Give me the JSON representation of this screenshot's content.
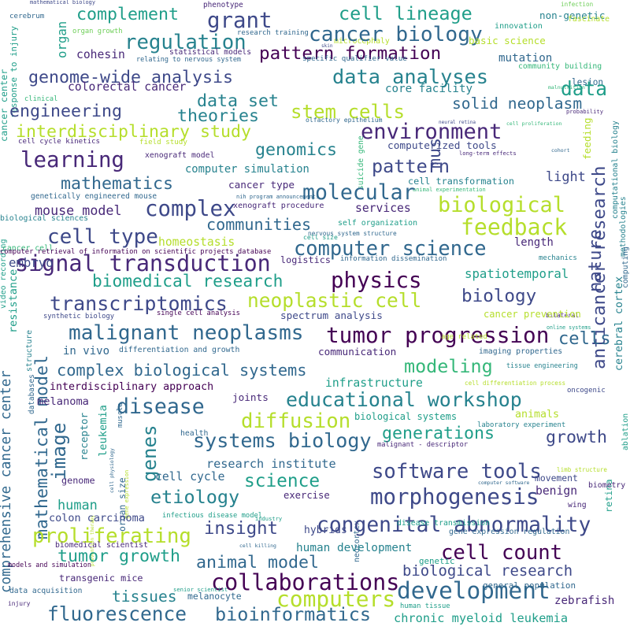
{
  "background": "#ffffff",
  "palette": [
    "#440154",
    "#482878",
    "#3e4989",
    "#31688e",
    "#26828e",
    "#1f9e89",
    "#35b779",
    "#6ece58",
    "#b5de2b",
    "#fde725"
  ],
  "words": [
    {
      "text": "mathematical biology",
      "color": "#3e4989"
    },
    {
      "text": "cerebrum",
      "color": "#31688e"
    },
    {
      "text": "response to injury",
      "color": "#1f9e89"
    },
    {
      "text": "cancer center",
      "color": "#1f9e89"
    },
    {
      "text": "complement",
      "color": "#1f9e89"
    },
    {
      "text": "organ growth",
      "color": "#6ece58"
    },
    {
      "text": "phenotype",
      "color": "#482878"
    },
    {
      "text": "grant",
      "color": "#3e4989"
    },
    {
      "text": "skin",
      "color": "#3e4989"
    },
    {
      "text": "cell lineage",
      "color": "#1f9e89"
    },
    {
      "text": "microcephaly",
      "color": "#b5de2b"
    },
    {
      "text": "research training",
      "color": "#31688e"
    },
    {
      "text": "innovation",
      "color": "#1f9e89"
    },
    {
      "text": "infection",
      "color": "#6ece58"
    },
    {
      "text": "non-genetic",
      "color": "#26828e"
    },
    {
      "text": "fascinate",
      "color": "#b5de2b"
    },
    {
      "text": "organ",
      "color": "#1f9e89"
    },
    {
      "text": "regulation",
      "color": "#26828e"
    },
    {
      "text": "cancer biology",
      "color": "#31688e"
    },
    {
      "text": "statistical models",
      "color": "#482878"
    },
    {
      "text": "relating to nervous system",
      "color": "#31688e"
    },
    {
      "text": "pattern formation",
      "color": "#440154"
    },
    {
      "text": "cohesin",
      "color": "#482878"
    },
    {
      "text": "specific qualifier value",
      "color": "#31688e"
    },
    {
      "text": "basic science",
      "color": "#b5de2b"
    },
    {
      "text": "mutation",
      "color": "#31688e"
    },
    {
      "text": "lesion",
      "color": "#31688e"
    },
    {
      "text": "community building",
      "color": "#35b779"
    },
    {
      "text": "genome-wide analysis",
      "color": "#3e4989"
    },
    {
      "text": "data analyses",
      "color": "#26828e"
    },
    {
      "text": "malnutrition",
      "color": "#35b779"
    },
    {
      "text": "colorectal cancer",
      "color": "#482878"
    },
    {
      "text": "core facility",
      "color": "#26828e"
    },
    {
      "text": "data",
      "color": "#1f9e89"
    },
    {
      "text": "clinical",
      "color": "#35b779"
    },
    {
      "text": "data set",
      "color": "#26828e"
    },
    {
      "text": "solid neoplasm",
      "color": "#31688e"
    },
    {
      "text": "engineering",
      "color": "#3e4989"
    },
    {
      "text": "theories",
      "color": "#26828e"
    },
    {
      "text": "stem cells",
      "color": "#b5de2b"
    },
    {
      "text": "probability",
      "color": "#482878"
    },
    {
      "text": "computational biology",
      "color": "#26828e"
    },
    {
      "text": "olfactory epithelium",
      "color": "#31688e"
    },
    {
      "text": "neural retina",
      "color": "#3e4989"
    },
    {
      "text": "cell proliferation",
      "color": "#35b779"
    },
    {
      "text": "interdisciplinary study",
      "color": "#b5de2b"
    },
    {
      "text": "environment",
      "color": "#482878"
    },
    {
      "text": "cell cycle kinetics",
      "color": "#482878"
    },
    {
      "text": "field study",
      "color": "#b5de2b"
    },
    {
      "text": "genomics",
      "color": "#26828e"
    },
    {
      "text": "computerized tools",
      "color": "#3e4989"
    },
    {
      "text": "suicide gene",
      "color": "#35b779"
    },
    {
      "text": "long-term effects",
      "color": "#482878"
    },
    {
      "text": "cohort",
      "color": "#31688e"
    },
    {
      "text": "feeding",
      "color": "#b5de2b"
    },
    {
      "text": "learning",
      "color": "#482878"
    },
    {
      "text": "xenograft model",
      "color": "#482878"
    },
    {
      "text": "pattern",
      "color": "#3e4989"
    },
    {
      "text": "mus",
      "color": "#3e4989"
    },
    {
      "text": "computer simulation",
      "color": "#26828e"
    },
    {
      "text": "cell transformation",
      "color": "#26828e"
    },
    {
      "text": "light",
      "color": "#3e4989"
    },
    {
      "text": "mathematics",
      "color": "#31688e"
    },
    {
      "text": "cancer type",
      "color": "#482878"
    },
    {
      "text": "animal experimentation",
      "color": "#35b779"
    },
    {
      "text": "molecular",
      "color": "#31688e"
    },
    {
      "text": "nih program announcements",
      "color": "#31688e"
    },
    {
      "text": "genetically engineered mouse",
      "color": "#31688e"
    },
    {
      "text": "complex",
      "color": "#3e4989"
    },
    {
      "text": "biological",
      "color": "#b5de2b"
    },
    {
      "text": "video recording",
      "color": "#1f9e89"
    },
    {
      "text": "biological sciences",
      "color": "#26828e"
    },
    {
      "text": "mouse model",
      "color": "#482878"
    },
    {
      "text": "xenograft procedure",
      "color": "#482878"
    },
    {
      "text": "services",
      "color": "#482878"
    },
    {
      "text": "communities",
      "color": "#31688e"
    },
    {
      "text": "nature",
      "color": "#3e4989"
    },
    {
      "text": "methodologies",
      "color": "#26828e"
    },
    {
      "text": "cell type",
      "color": "#3e4989"
    },
    {
      "text": "homeostasis",
      "color": "#b5de2b"
    },
    {
      "text": "self organization",
      "color": "#1f9e89"
    },
    {
      "text": "nervous system structure",
      "color": "#31688e"
    },
    {
      "text": "feedback",
      "color": "#b5de2b"
    },
    {
      "text": "cell size",
      "color": "#1f9e89"
    },
    {
      "text": "anticancer research",
      "color": "#3e4989"
    },
    {
      "text": "cancer cell",
      "color": "#35b779"
    },
    {
      "text": "computer retrieval of information on scientific projects database",
      "color": "#440154"
    },
    {
      "text": "computer science",
      "color": "#31688e"
    },
    {
      "text": "length",
      "color": "#482878"
    },
    {
      "text": "signal transduction",
      "color": "#482878"
    },
    {
      "text": "logistics",
      "color": "#482878"
    },
    {
      "text": "information dissemination",
      "color": "#31688e"
    },
    {
      "text": "mechanics",
      "color": "#26828e"
    },
    {
      "text": "embryo",
      "color": "#3e4989"
    },
    {
      "text": "resistance",
      "color": "#1f9e89"
    },
    {
      "text": "biomedical research",
      "color": "#1f9e89"
    },
    {
      "text": "spatiotemporal",
      "color": "#1f9e89"
    },
    {
      "text": "physics",
      "color": "#440154"
    },
    {
      "text": "transcriptomics",
      "color": "#3e4989"
    },
    {
      "text": "neoplastic cell",
      "color": "#b5de2b"
    },
    {
      "text": "biology",
      "color": "#3e4989"
    },
    {
      "text": "synthetic biology",
      "color": "#3e4989"
    },
    {
      "text": "single cell analysis",
      "color": "#440154"
    },
    {
      "text": "spectrum analysis",
      "color": "#3e4989"
    },
    {
      "text": "bilateral",
      "color": "#482878"
    },
    {
      "text": "cancer prevention",
      "color": "#b5de2b"
    },
    {
      "text": "cerebral cortex",
      "color": "#26828e"
    },
    {
      "text": "computing",
      "color": "#31688e"
    },
    {
      "text": "mathematical model",
      "color": "#31688e"
    },
    {
      "text": "malignant neoplasms",
      "color": "#31688e"
    },
    {
      "text": "tumor progression",
      "color": "#440154"
    },
    {
      "text": "cells",
      "color": "#31688e"
    },
    {
      "text": "online systems",
      "color": "#1f9e89"
    },
    {
      "text": "in vivo",
      "color": "#31688e"
    },
    {
      "text": "differentiation and growth",
      "color": "#31688e"
    },
    {
      "text": "communication",
      "color": "#482878"
    },
    {
      "text": "age related",
      "color": "#b5de2b"
    },
    {
      "text": "imaging properties",
      "color": "#31688e"
    },
    {
      "text": "databases",
      "color": "#31688e"
    },
    {
      "text": "structure",
      "color": "#26828e"
    },
    {
      "text": "complex biological systems",
      "color": "#31688e"
    },
    {
      "text": "modeling",
      "color": "#35b779"
    },
    {
      "text": "tissue engineering",
      "color": "#26828e"
    },
    {
      "text": "comprehensive cancer center",
      "color": "#31688e"
    },
    {
      "text": "interdisciplinary approach",
      "color": "#440154"
    },
    {
      "text": "infrastructure",
      "color": "#1f9e89"
    },
    {
      "text": "cell differentiation process",
      "color": "#b5de2b"
    },
    {
      "text": "oncogenic",
      "color": "#3e4989"
    },
    {
      "text": "melanoma",
      "color": "#482878"
    },
    {
      "text": "disease",
      "color": "#31688e"
    },
    {
      "text": "joints",
      "color": "#482878"
    },
    {
      "text": "educational workshop",
      "color": "#26828e"
    },
    {
      "text": "receptor",
      "color": "#26828e"
    },
    {
      "text": "leukemia",
      "color": "#1f9e89"
    },
    {
      "text": "muscle",
      "color": "#31688e"
    },
    {
      "text": "diffusion",
      "color": "#b5de2b"
    },
    {
      "text": "animals",
      "color": "#b5de2b"
    },
    {
      "text": "biological systems",
      "color": "#1f9e89"
    },
    {
      "text": "laboratory experiment",
      "color": "#26828e"
    },
    {
      "text": "ablation",
      "color": "#1f9e89"
    },
    {
      "text": "image",
      "color": "#31688e"
    },
    {
      "text": "genes",
      "color": "#26828e"
    },
    {
      "text": "systems biology",
      "color": "#31688e"
    },
    {
      "text": "generations",
      "color": "#1f9e89"
    },
    {
      "text": "growth",
      "color": "#3e4989"
    },
    {
      "text": "health",
      "color": "#31688e"
    },
    {
      "text": "cell physiology",
      "color": "#31688e"
    },
    {
      "text": "research institute",
      "color": "#31688e"
    },
    {
      "text": "malignant - descriptor",
      "color": "#482878"
    },
    {
      "text": "software tools",
      "color": "#3e4989"
    },
    {
      "text": "limb structure",
      "color": "#b5de2b"
    },
    {
      "text": "genome",
      "color": "#482878"
    },
    {
      "text": "organ size",
      "color": "#31688e"
    },
    {
      "text": "gene expression",
      "color": "#b5de2b"
    },
    {
      "text": "cell cycle",
      "color": "#31688e"
    },
    {
      "text": "science",
      "color": "#1f9e89"
    },
    {
      "text": "computer software",
      "color": "#31688e"
    },
    {
      "text": "movement",
      "color": "#3e4989"
    },
    {
      "text": "retina",
      "color": "#1f9e89"
    },
    {
      "text": "human",
      "color": "#1f9e89"
    },
    {
      "text": "etiology",
      "color": "#26828e"
    },
    {
      "text": "exercise",
      "color": "#482878"
    },
    {
      "text": "morphogenesis",
      "color": "#3e4989"
    },
    {
      "text": "benign",
      "color": "#482878"
    },
    {
      "text": "biometry",
      "color": "#482878"
    },
    {
      "text": "prevention therapy",
      "color": "#b5de2b"
    },
    {
      "text": "colon carcinoma",
      "color": "#3e4989"
    },
    {
      "text": "infectious disease model",
      "color": "#1f9e89"
    },
    {
      "text": "industry",
      "color": "#1f9e89"
    },
    {
      "text": "neocortex",
      "color": "#31688e"
    },
    {
      "text": "wing",
      "color": "#482878"
    },
    {
      "text": "insight",
      "color": "#3e4989"
    },
    {
      "text": "congenital abnormality",
      "color": "#3e4989"
    },
    {
      "text": "hybrids",
      "color": "#3e4989"
    },
    {
      "text": "disease transmission",
      "color": "#1f9e89"
    },
    {
      "text": "proliferating",
      "color": "#b5de2b"
    },
    {
      "text": "gene expression regulation",
      "color": "#31688e"
    },
    {
      "text": "biomedical scientist",
      "color": "#482878"
    },
    {
      "text": "tumor growth",
      "color": "#1f9e89"
    },
    {
      "text": "cell killing",
      "color": "#31688e"
    },
    {
      "text": "human development",
      "color": "#26828e"
    },
    {
      "text": "cell count",
      "color": "#440154"
    },
    {
      "text": "genetic",
      "color": "#1f9e89"
    },
    {
      "text": "models and simulation",
      "color": "#440154"
    },
    {
      "text": "animal model",
      "color": "#31688e"
    },
    {
      "text": "transgenic mice",
      "color": "#482878"
    },
    {
      "text": "biological research",
      "color": "#3e4989"
    },
    {
      "text": "collaborations",
      "color": "#440154"
    },
    {
      "text": "data acquisition",
      "color": "#31688e"
    },
    {
      "text": "senior scientist",
      "color": "#1f9e89"
    },
    {
      "text": "computers",
      "color": "#b5de2b"
    },
    {
      "text": "tissues",
      "color": "#26828e"
    },
    {
      "text": "development",
      "color": "#31688e"
    },
    {
      "text": "general population",
      "color": "#31688e"
    },
    {
      "text": "human tissue",
      "color": "#1f9e89"
    },
    {
      "text": "zebrafish",
      "color": "#482878"
    },
    {
      "text": "injury",
      "color": "#482878"
    },
    {
      "text": "melanocyte",
      "color": "#31688e"
    },
    {
      "text": "fluorescence",
      "color": "#31688e"
    },
    {
      "text": "bioinformatics",
      "color": "#31688e"
    },
    {
      "text": "chronic myeloid leukemia",
      "color": "#1f9e89"
    }
  ]
}
